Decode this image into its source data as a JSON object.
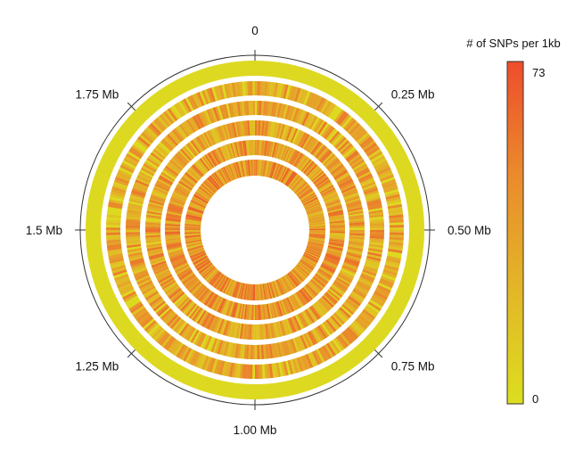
{
  "chart_data": {
    "type": "heatmap",
    "layout": "circular",
    "title": "",
    "genome_length_mb": 2.0,
    "position_ticks": [
      {
        "label": "0",
        "mb": 0.0
      },
      {
        "label": "0.25 Mb",
        "mb": 0.25
      },
      {
        "label": "0.50 Mb",
        "mb": 0.5
      },
      {
        "label": "0.75 Mb",
        "mb": 0.75
      },
      {
        "label": "1.00 Mb",
        "mb": 1.0
      },
      {
        "label": "1.25 Mb",
        "mb": 1.25
      },
      {
        "label": "1.5 Mb",
        "mb": 1.5
      },
      {
        "label": "1.75 Mb",
        "mb": 1.75
      }
    ],
    "colorbar": {
      "title": "# of SNPs per 1kb",
      "min": 0,
      "max": 73,
      "min_label": "0",
      "max_label": "73",
      "colors": [
        "#dcde1f",
        "#e3b627",
        "#ea8b2c",
        "#ee4d2c"
      ]
    },
    "rings": [
      {
        "level": "uniform_low",
        "typical_snps_per_kb": 1
      },
      {
        "level": "moderate",
        "typical_snps_per_kb": 28
      },
      {
        "level": "moderate",
        "typical_snps_per_kb": 31
      },
      {
        "level": "moderate_high",
        "typical_snps_per_kb": 33
      },
      {
        "level": "high",
        "typical_snps_per_kb": 38
      },
      {
        "level": "high",
        "typical_snps_per_kb": 42
      }
    ]
  }
}
